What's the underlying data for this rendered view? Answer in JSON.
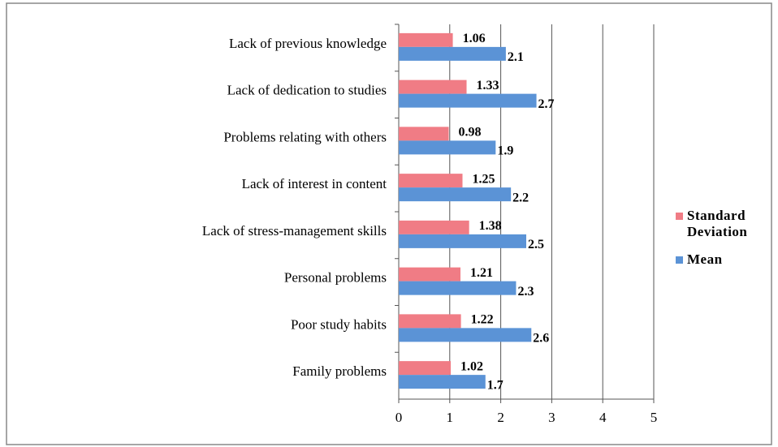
{
  "chart_data": {
    "type": "bar",
    "orientation": "horizontal",
    "categories": [
      "Lack of previous knowledge",
      "Lack of dedication to studies",
      "Problems relating with others",
      "Lack of interest in content",
      "Lack of stress-management skills",
      "Personal problems",
      "Poor study habits",
      "Family problems"
    ],
    "series": [
      {
        "name": "Standard Deviation",
        "color": "#f07c85",
        "values": [
          1.06,
          1.33,
          0.98,
          1.25,
          1.38,
          1.21,
          1.22,
          1.02
        ]
      },
      {
        "name": "Mean",
        "color": "#5b93d6",
        "values": [
          2.1,
          2.7,
          1.9,
          2.2,
          2.5,
          2.3,
          2.6,
          1.7
        ]
      }
    ],
    "xlim": [
      0,
      5
    ],
    "xticks": [
      0,
      1,
      2,
      3,
      4,
      5
    ],
    "grid": true,
    "legend": "right"
  }
}
